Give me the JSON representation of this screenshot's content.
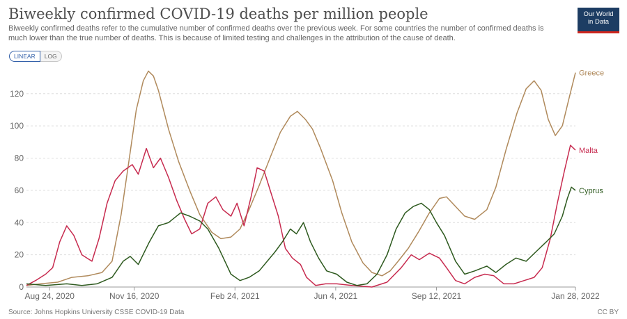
{
  "header": {
    "title": "Biweekly confirmed COVID-19 deaths per million people",
    "subtitle": "Biweekly confirmed deaths refer to the cumulative number of confirmed deaths over the previous week. For some countries the number of confirmed deaths is much lower than the true number of deaths. This is because of limited testing and challenges in the attribution of the cause of death.",
    "logo_line1": "Our World",
    "logo_line2": "in Data"
  },
  "controls": {
    "linear_label": "LINEAR",
    "log_label": "LOG",
    "selected": "LINEAR"
  },
  "footer": {
    "source": "Source: Johns Hopkins University CSSE COVID-19 Data",
    "license": "CC BY"
  },
  "chart_data": {
    "type": "line",
    "title": "Biweekly confirmed COVID-19 deaths per million people",
    "xlabel": "",
    "ylabel": "",
    "x_domain": [
      "2020-08-01",
      "2022-01-28"
    ],
    "x_ticks": [
      {
        "date": "2020-08-24",
        "label": "Aug 24, 2020"
      },
      {
        "date": "2020-11-16",
        "label": "Nov 16, 2020"
      },
      {
        "date": "2021-02-24",
        "label": "Feb 24, 2021"
      },
      {
        "date": "2021-06-04",
        "label": "Jun 4, 2021"
      },
      {
        "date": "2021-09-12",
        "label": "Sep 12, 2021"
      },
      {
        "date": "2022-01-28",
        "label": "Jan 28, 2022"
      }
    ],
    "ylim": [
      0,
      135
    ],
    "y_ticks": [
      0,
      20,
      40,
      60,
      80,
      100,
      120
    ],
    "grid": "horizontal dashed",
    "legend": "line-end labels",
    "series": [
      {
        "name": "Greece",
        "color": "#b08a5c",
        "points": [
          [
            "2020-08-01",
            1
          ],
          [
            "2020-08-15",
            2
          ],
          [
            "2020-09-01",
            3
          ],
          [
            "2020-09-15",
            6
          ],
          [
            "2020-10-01",
            7
          ],
          [
            "2020-10-15",
            9
          ],
          [
            "2020-10-25",
            16
          ],
          [
            "2020-11-03",
            45
          ],
          [
            "2020-11-10",
            75
          ],
          [
            "2020-11-18",
            110
          ],
          [
            "2020-11-25",
            128
          ],
          [
            "2020-11-30",
            134
          ],
          [
            "2020-12-05",
            131
          ],
          [
            "2020-12-10",
            122
          ],
          [
            "2020-12-20",
            98
          ],
          [
            "2020-12-30",
            78
          ],
          [
            "2021-01-10",
            60
          ],
          [
            "2021-01-20",
            45
          ],
          [
            "2021-02-01",
            34
          ],
          [
            "2021-02-10",
            30
          ],
          [
            "2021-02-20",
            31
          ],
          [
            "2021-03-01",
            36
          ],
          [
            "2021-03-10",
            48
          ],
          [
            "2021-03-20",
            63
          ],
          [
            "2021-04-01",
            82
          ],
          [
            "2021-04-10",
            96
          ],
          [
            "2021-04-20",
            106
          ],
          [
            "2021-04-27",
            109
          ],
          [
            "2021-05-05",
            104
          ],
          [
            "2021-05-12",
            98
          ],
          [
            "2021-05-20",
            86
          ],
          [
            "2021-06-01",
            66
          ],
          [
            "2021-06-10",
            46
          ],
          [
            "2021-06-20",
            28
          ],
          [
            "2021-07-01",
            15
          ],
          [
            "2021-07-10",
            9
          ],
          [
            "2021-07-20",
            7
          ],
          [
            "2021-07-28",
            10
          ],
          [
            "2021-08-05",
            16
          ],
          [
            "2021-08-15",
            24
          ],
          [
            "2021-08-25",
            34
          ],
          [
            "2021-09-05",
            46
          ],
          [
            "2021-09-15",
            55
          ],
          [
            "2021-09-22",
            56
          ],
          [
            "2021-10-01",
            50
          ],
          [
            "2021-10-10",
            44
          ],
          [
            "2021-10-20",
            42
          ],
          [
            "2021-11-01",
            48
          ],
          [
            "2021-11-10",
            62
          ],
          [
            "2021-11-20",
            85
          ],
          [
            "2021-12-01",
            108
          ],
          [
            "2021-12-10",
            123
          ],
          [
            "2021-12-18",
            128
          ],
          [
            "2021-12-25",
            122
          ],
          [
            "2022-01-01",
            104
          ],
          [
            "2022-01-08",
            94
          ],
          [
            "2022-01-15",
            100
          ],
          [
            "2022-01-22",
            118
          ],
          [
            "2022-01-28",
            133
          ]
        ]
      },
      {
        "name": "Malta",
        "color": "#c72b4f",
        "points": [
          [
            "2020-08-01",
            1
          ],
          [
            "2020-08-10",
            4
          ],
          [
            "2020-08-20",
            8
          ],
          [
            "2020-08-27",
            12
          ],
          [
            "2020-09-03",
            28
          ],
          [
            "2020-09-10",
            38
          ],
          [
            "2020-09-17",
            32
          ],
          [
            "2020-09-25",
            20
          ],
          [
            "2020-10-05",
            16
          ],
          [
            "2020-10-12",
            30
          ],
          [
            "2020-10-20",
            52
          ],
          [
            "2020-10-28",
            66
          ],
          [
            "2020-11-05",
            72
          ],
          [
            "2020-11-14",
            76
          ],
          [
            "2020-11-20",
            70
          ],
          [
            "2020-11-28",
            86
          ],
          [
            "2020-12-05",
            74
          ],
          [
            "2020-12-12",
            80
          ],
          [
            "2020-12-20",
            68
          ],
          [
            "2020-12-28",
            54
          ],
          [
            "2021-01-05",
            42
          ],
          [
            "2021-01-12",
            33
          ],
          [
            "2021-01-20",
            36
          ],
          [
            "2021-01-28",
            52
          ],
          [
            "2021-02-05",
            56
          ],
          [
            "2021-02-12",
            48
          ],
          [
            "2021-02-20",
            44
          ],
          [
            "2021-02-26",
            52
          ],
          [
            "2021-03-05",
            38
          ],
          [
            "2021-03-12",
            56
          ],
          [
            "2021-03-18",
            74
          ],
          [
            "2021-03-25",
            72
          ],
          [
            "2021-04-01",
            58
          ],
          [
            "2021-04-08",
            44
          ],
          [
            "2021-04-15",
            24
          ],
          [
            "2021-04-22",
            18
          ],
          [
            "2021-04-30",
            14
          ],
          [
            "2021-05-06",
            6
          ],
          [
            "2021-05-15",
            1
          ],
          [
            "2021-05-25",
            2
          ],
          [
            "2021-06-05",
            2
          ],
          [
            "2021-06-20",
            1
          ],
          [
            "2021-07-10",
            0
          ],
          [
            "2021-07-25",
            3
          ],
          [
            "2021-08-08",
            12
          ],
          [
            "2021-08-18",
            20
          ],
          [
            "2021-08-26",
            17
          ],
          [
            "2021-09-05",
            21
          ],
          [
            "2021-09-15",
            18
          ],
          [
            "2021-09-22",
            12
          ],
          [
            "2021-10-01",
            4
          ],
          [
            "2021-10-10",
            2
          ],
          [
            "2021-10-20",
            6
          ],
          [
            "2021-10-30",
            8
          ],
          [
            "2021-11-08",
            7
          ],
          [
            "2021-11-18",
            2
          ],
          [
            "2021-11-28",
            2
          ],
          [
            "2021-12-08",
            4
          ],
          [
            "2021-12-18",
            6
          ],
          [
            "2021-12-26",
            12
          ],
          [
            "2022-01-03",
            30
          ],
          [
            "2022-01-10",
            52
          ],
          [
            "2022-01-17",
            72
          ],
          [
            "2022-01-23",
            88
          ],
          [
            "2022-01-28",
            85
          ]
        ]
      },
      {
        "name": "Cyprus",
        "color": "#2e5a1f",
        "points": [
          [
            "2020-08-01",
            2
          ],
          [
            "2020-08-20",
            1
          ],
          [
            "2020-09-10",
            2
          ],
          [
            "2020-09-25",
            1
          ],
          [
            "2020-10-10",
            2
          ],
          [
            "2020-10-25",
            6
          ],
          [
            "2020-11-05",
            16
          ],
          [
            "2020-11-12",
            19
          ],
          [
            "2020-11-20",
            14
          ],
          [
            "2020-12-01",
            28
          ],
          [
            "2020-12-10",
            38
          ],
          [
            "2020-12-20",
            40
          ],
          [
            "2021-01-01",
            46
          ],
          [
            "2021-01-10",
            44
          ],
          [
            "2021-01-20",
            41
          ],
          [
            "2021-01-28",
            36
          ],
          [
            "2021-02-08",
            24
          ],
          [
            "2021-02-20",
            8
          ],
          [
            "2021-03-01",
            4
          ],
          [
            "2021-03-10",
            6
          ],
          [
            "2021-03-20",
            10
          ],
          [
            "2021-03-28",
            16
          ],
          [
            "2021-04-05",
            22
          ],
          [
            "2021-04-12",
            28
          ],
          [
            "2021-04-20",
            36
          ],
          [
            "2021-04-26",
            33
          ],
          [
            "2021-05-03",
            40
          ],
          [
            "2021-05-10",
            28
          ],
          [
            "2021-05-18",
            18
          ],
          [
            "2021-05-26",
            10
          ],
          [
            "2021-06-05",
            8
          ],
          [
            "2021-06-15",
            3
          ],
          [
            "2021-06-25",
            1
          ],
          [
            "2021-07-05",
            2
          ],
          [
            "2021-07-15",
            8
          ],
          [
            "2021-07-25",
            20
          ],
          [
            "2021-08-03",
            36
          ],
          [
            "2021-08-12",
            46
          ],
          [
            "2021-08-20",
            50
          ],
          [
            "2021-08-28",
            52
          ],
          [
            "2021-09-05",
            48
          ],
          [
            "2021-09-12",
            40
          ],
          [
            "2021-09-20",
            32
          ],
          [
            "2021-10-01",
            16
          ],
          [
            "2021-10-10",
            8
          ],
          [
            "2021-10-20",
            10
          ],
          [
            "2021-11-01",
            13
          ],
          [
            "2021-11-10",
            9
          ],
          [
            "2021-11-20",
            14
          ],
          [
            "2021-11-30",
            18
          ],
          [
            "2021-12-10",
            16
          ],
          [
            "2021-12-20",
            22
          ],
          [
            "2021-12-30",
            28
          ],
          [
            "2022-01-07",
            33
          ],
          [
            "2022-01-15",
            44
          ],
          [
            "2022-01-20",
            55
          ],
          [
            "2022-01-24",
            62
          ],
          [
            "2022-01-28",
            60
          ]
        ]
      }
    ]
  }
}
